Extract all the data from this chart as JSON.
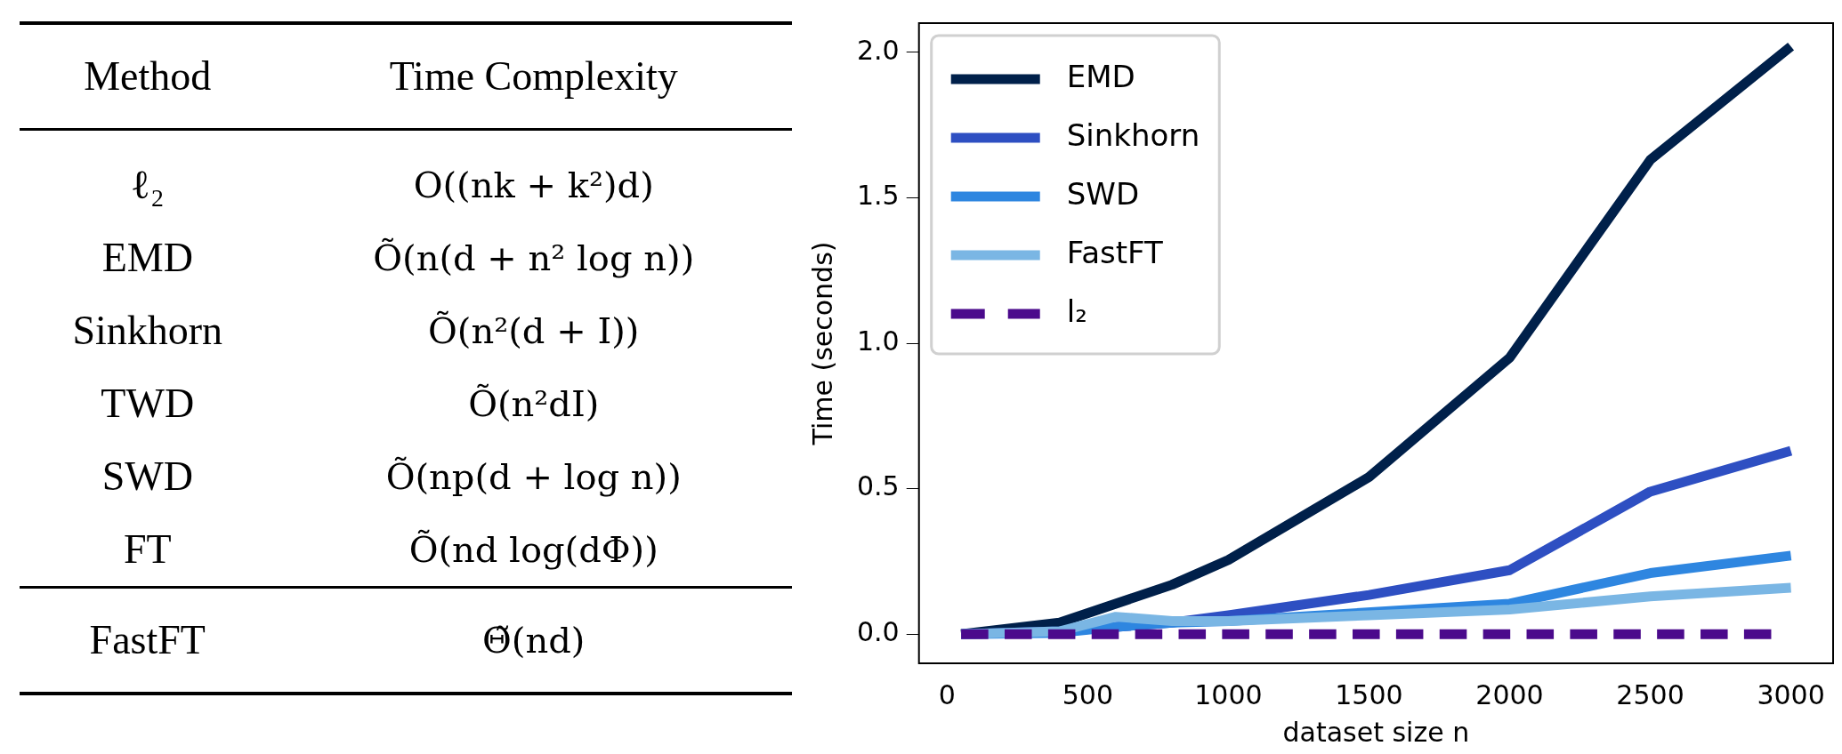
{
  "chart_data": [
    {
      "type": "other",
      "annotations": [
        "Method",
        "Time Complexity",
        "ℓ₂",
        "O((nk + k²)d)",
        "EMD",
        "Õ(n(d + n² log n))",
        "Sinkhorn",
        "Õ(n²(d + I))",
        "TWD",
        "Õ(n²dI)",
        "SWD",
        "Õ(np(d + log n))",
        "FT",
        "Õ(nd log(dΦ))",
        "FastFT",
        "Θ̃(nd)"
      ]
    },
    {
      "type": "line",
      "xlabel": "dataset size n",
      "ylabel": "Time (seconds)",
      "xlim": [
        -100,
        3150
      ],
      "ylim": [
        -0.1,
        2.1
      ],
      "xticks": [
        0,
        500,
        1000,
        1500,
        2000,
        2500,
        3000
      ],
      "yticks": [
        {
          "value": 0,
          "label": "0.0"
        },
        {
          "value": 0.5,
          "label": "0.5"
        },
        {
          "value": 1,
          "label": "1.0"
        },
        {
          "value": 1.5,
          "label": "1.5"
        },
        {
          "value": 2,
          "label": "2.0"
        }
      ],
      "grid": false,
      "legend": "top left",
      "marker": "none",
      "series": [
        {
          "name": "EMD",
          "color": "#00204a",
          "x": [
            50,
            400,
            800,
            1000,
            1500,
            2000,
            2500,
            3000
          ],
          "values": [
            0,
            0.04,
            0.17,
            0.255,
            0.54,
            0.95,
            1.63,
            2.02
          ]
        },
        {
          "name": "Sinkhorn",
          "color": "#2e4fc2",
          "x": [
            50,
            400,
            800,
            1000,
            1500,
            2000,
            2500,
            3000
          ],
          "values": [
            0,
            0.01,
            0.04,
            0.065,
            0.135,
            0.22,
            0.49,
            0.63
          ]
        },
        {
          "name": "SWD",
          "color": "#2e86e0",
          "x": [
            50,
            400,
            600,
            800,
            1000,
            2000,
            2500,
            3000
          ],
          "values": [
            0,
            0.005,
            0.025,
            0.04,
            0.045,
            0.105,
            0.21,
            0.27
          ]
        },
        {
          "name": "FastFT",
          "color": "#7ab6e4",
          "x": [
            50,
            400,
            600,
            800,
            1000,
            1500,
            2000,
            2500,
            3000
          ],
          "values": [
            0,
            0.01,
            0.06,
            0.045,
            0.045,
            0.065,
            0.085,
            0.13,
            0.16
          ]
        },
        {
          "name": "l₂",
          "color": "#4b0a8c",
          "line_style": "dashed",
          "x": [
            50,
            2930
          ],
          "values": [
            0,
            0
          ]
        }
      ]
    }
  ]
}
